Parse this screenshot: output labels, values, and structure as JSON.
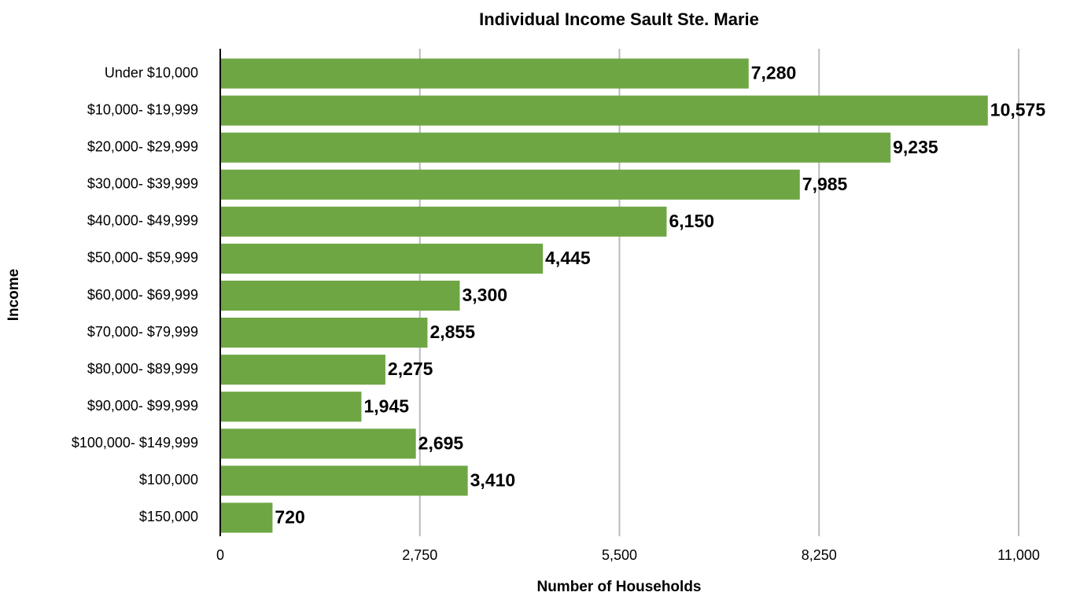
{
  "chart_data": {
    "type": "bar",
    "orientation": "horizontal",
    "title": "Individual Income Sault Ste. Marie",
    "x_label": "Number of Households",
    "y_label": "Income",
    "categories": [
      "Under $10,000",
      "$10,000- $19,999",
      "$20,000- $29,999",
      "$30,000- $39,999",
      "$40,000- $49,999",
      "$50,000- $59,999",
      "$60,000- $69,999",
      "$70,000- $79,999",
      "$80,000- $89,999",
      "$90,000- $99,999",
      "$100,000- $149,999",
      "$100,000",
      "$150,000"
    ],
    "values": [
      7280,
      10575,
      9235,
      7985,
      6150,
      4445,
      3300,
      2855,
      2275,
      1945,
      2695,
      3410,
      720
    ],
    "value_labels": [
      "7,280",
      "10,575",
      "9,235",
      "7,985",
      "6,150",
      "4,445",
      "3,300",
      "2,855",
      "2,275",
      "1,945",
      "2,695",
      "3,410",
      "720"
    ],
    "color": "#6ea644",
    "xlim": [
      0,
      11000
    ],
    "xticks": [
      0,
      {
        "value": 2750,
        "label": "2,750"
      },
      {
        "value": 5500,
        "label": "5,500"
      },
      {
        "value": 8250,
        "label": "8,250"
      },
      {
        "value": 11000,
        "label": "11,000"
      }
    ],
    "grid": true
  }
}
